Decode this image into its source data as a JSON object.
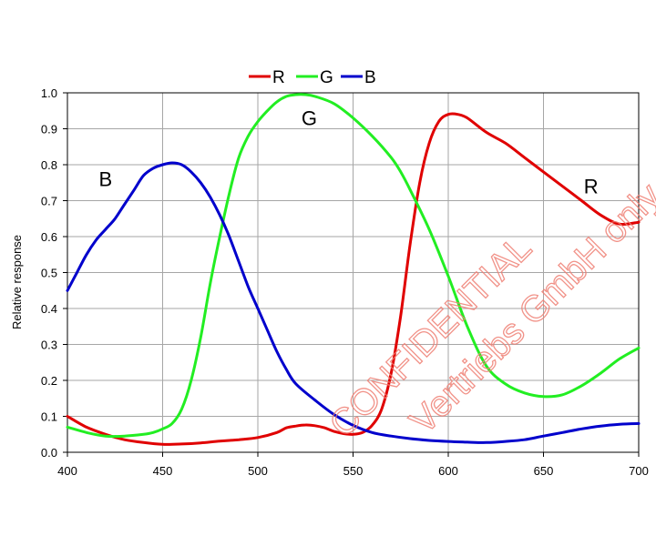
{
  "chart_data": {
    "type": "line",
    "title": "",
    "xlabel": "",
    "ylabel": "Relative response",
    "xlim": [
      400,
      700
    ],
    "ylim": [
      0,
      1.0
    ],
    "grid": true,
    "legend_position": "top-center",
    "x_ticks": [
      "400",
      "450",
      "500",
      "550",
      "600",
      "650",
      "700"
    ],
    "y_ticks": [
      "0.0",
      "0.1",
      "0.2",
      "0.3",
      "0.4",
      "0.5",
      "0.6",
      "0.7",
      "0.8",
      "0.9",
      "1.0"
    ],
    "series": [
      {
        "name": "R",
        "color": "#e00000",
        "x": [
          400,
          410,
          420,
          430,
          440,
          450,
          460,
          470,
          480,
          490,
          500,
          510,
          515,
          520,
          525,
          530,
          535,
          540,
          545,
          550,
          555,
          560,
          565,
          570,
          575,
          580,
          585,
          590,
          595,
          600,
          605,
          610,
          620,
          630,
          640,
          650,
          660,
          670,
          680,
          690,
          700
        ],
        "y": [
          0.1,
          0.07,
          0.05,
          0.035,
          0.027,
          0.022,
          0.023,
          0.026,
          0.031,
          0.035,
          0.041,
          0.055,
          0.068,
          0.073,
          0.076,
          0.074,
          0.068,
          0.058,
          0.052,
          0.05,
          0.055,
          0.075,
          0.12,
          0.22,
          0.38,
          0.58,
          0.75,
          0.86,
          0.92,
          0.94,
          0.94,
          0.93,
          0.89,
          0.86,
          0.82,
          0.78,
          0.74,
          0.7,
          0.66,
          0.635,
          0.64
        ]
      },
      {
        "name": "G",
        "color": "#22ee22",
        "x": [
          400,
          410,
          420,
          430,
          440,
          445,
          450,
          455,
          460,
          465,
          470,
          475,
          480,
          485,
          490,
          495,
          500,
          505,
          510,
          515,
          520,
          525,
          530,
          540,
          550,
          560,
          570,
          575,
          580,
          590,
          600,
          610,
          620,
          630,
          640,
          650,
          660,
          670,
          680,
          690,
          700
        ],
        "y": [
          0.07,
          0.055,
          0.045,
          0.045,
          0.05,
          0.055,
          0.065,
          0.08,
          0.12,
          0.2,
          0.32,
          0.47,
          0.6,
          0.72,
          0.82,
          0.88,
          0.92,
          0.95,
          0.975,
          0.99,
          0.995,
          0.995,
          0.99,
          0.97,
          0.93,
          0.88,
          0.82,
          0.78,
          0.73,
          0.62,
          0.49,
          0.35,
          0.24,
          0.19,
          0.165,
          0.155,
          0.16,
          0.185,
          0.22,
          0.26,
          0.29
        ]
      },
      {
        "name": "B",
        "color": "#0000cc",
        "x": [
          400,
          405,
          410,
          415,
          420,
          425,
          430,
          435,
          440,
          445,
          450,
          455,
          460,
          465,
          470,
          475,
          480,
          485,
          490,
          495,
          500,
          505,
          510,
          515,
          520,
          530,
          540,
          550,
          560,
          570,
          580,
          590,
          600,
          610,
          620,
          630,
          640,
          650,
          660,
          670,
          680,
          690,
          700
        ],
        "y": [
          0.45,
          0.5,
          0.55,
          0.59,
          0.62,
          0.65,
          0.69,
          0.73,
          0.77,
          0.79,
          0.8,
          0.805,
          0.8,
          0.78,
          0.75,
          0.71,
          0.66,
          0.6,
          0.53,
          0.46,
          0.4,
          0.34,
          0.28,
          0.23,
          0.19,
          0.145,
          0.105,
          0.075,
          0.055,
          0.045,
          0.038,
          0.033,
          0.03,
          0.028,
          0.027,
          0.03,
          0.035,
          0.045,
          0.055,
          0.065,
          0.073,
          0.078,
          0.08
        ]
      }
    ],
    "annotations": [
      {
        "text": "B",
        "x": 420,
        "y": 0.74
      },
      {
        "text": "G",
        "x": 527,
        "y": 0.91
      },
      {
        "text": "R",
        "x": 675,
        "y": 0.72
      }
    ],
    "watermark": {
      "lines": [
        "CONFIDENTIAL",
        "Vertriebs GmbH only"
      ],
      "color": "#ef7f74"
    }
  }
}
